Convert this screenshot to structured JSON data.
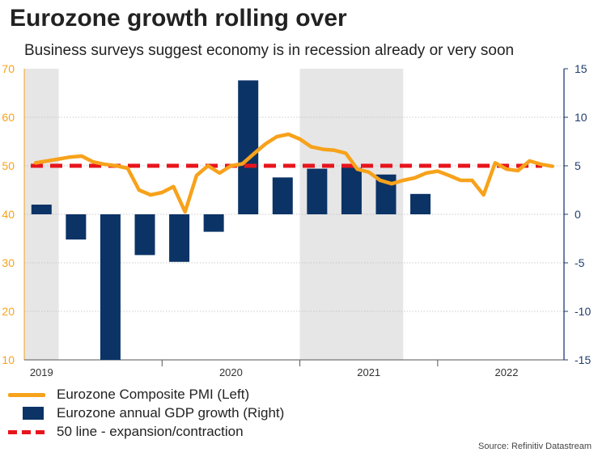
{
  "chart_data": {
    "type": "line+bar",
    "title": "Eurozone growth rolling over",
    "subtitle": "Business surveys suggest economy is in recession already or very soon",
    "years": [
      "2019",
      "2020",
      "2021",
      "2022"
    ],
    "left_axis": {
      "ticks": [
        "70",
        "60",
        "50",
        "40",
        "30",
        "20",
        "10"
      ],
      "range": [
        10,
        70
      ],
      "color": "#f7a21b"
    },
    "right_axis": {
      "ticks": [
        "15",
        "10",
        "5",
        "0",
        "-5",
        "-10",
        "-15"
      ],
      "range": [
        -15,
        15
      ],
      "color": "#1f3d6e"
    },
    "reference_line": {
      "value": 50,
      "color": "#e8141c"
    },
    "shaded_periods": [
      [
        2019.0,
        2019.25
      ],
      [
        2021.0,
        2021.75
      ]
    ],
    "pmi": {
      "color": "#f7a21b",
      "x": [
        2019.083,
        2019.167,
        2019.25,
        2019.333,
        2019.417,
        2019.5,
        2019.583,
        2019.667,
        2019.75,
        2019.833,
        2019.917,
        2020.0,
        2020.083,
        2020.167,
        2020.25,
        2020.333,
        2020.417,
        2020.5,
        2020.583,
        2020.667,
        2020.75,
        2020.833,
        2020.917,
        2021.0,
        2021.083,
        2021.167,
        2021.25,
        2021.333,
        2021.417,
        2021.5,
        2021.583,
        2021.667,
        2021.75,
        2021.833,
        2021.917,
        2022.0,
        2022.083,
        2022.167,
        2022.25,
        2022.333,
        2022.417,
        2022.5,
        2022.583,
        2022.667,
        2022.75,
        2022.833
      ],
      "y": [
        50.6,
        51.0,
        51.4,
        51.8,
        52.0,
        50.8,
        50.3,
        50.0,
        49.5,
        45.0,
        44.0,
        44.5,
        45.7,
        40.5,
        48.0,
        50.0,
        48.5,
        50.0,
        50.4,
        52.5,
        54.5,
        56.0,
        56.5,
        55.5,
        53.9,
        53.4,
        53.2,
        52.6,
        49.3,
        48.7,
        47.0,
        46.3,
        47.0,
        47.5,
        48.5,
        48.9,
        48.0,
        47.0,
        47.0,
        44.0,
        50.6,
        49.3,
        49.0,
        51.0,
        50.3,
        49.9
      ],
      "name": "Eurozone Composite PMI (Left)"
    },
    "gdp": {
      "color": "#0b3366",
      "x": [
        2019.125,
        2019.375,
        2019.625,
        2019.875,
        2020.125,
        2020.375,
        2020.625,
        2020.875,
        2021.125,
        2021.375,
        2021.625,
        2021.875,
        2022.125,
        2022.375
      ],
      "y": [
        1.0,
        -2.6,
        -15.0,
        -4.2,
        -4.9,
        -1.8,
        13.8,
        3.8,
        4.7,
        4.8,
        4.1,
        2.1,
        0,
        0
      ],
      "name": "Eurozone annual GDP growth (Right)"
    }
  },
  "legend": {
    "pmi": "Eurozone Composite PMI (Left)",
    "gdp": "Eurozone annual GDP growth (Right)",
    "ref": "50 line - expansion/contraction"
  },
  "source": "Source: Refinitiv Datastream"
}
